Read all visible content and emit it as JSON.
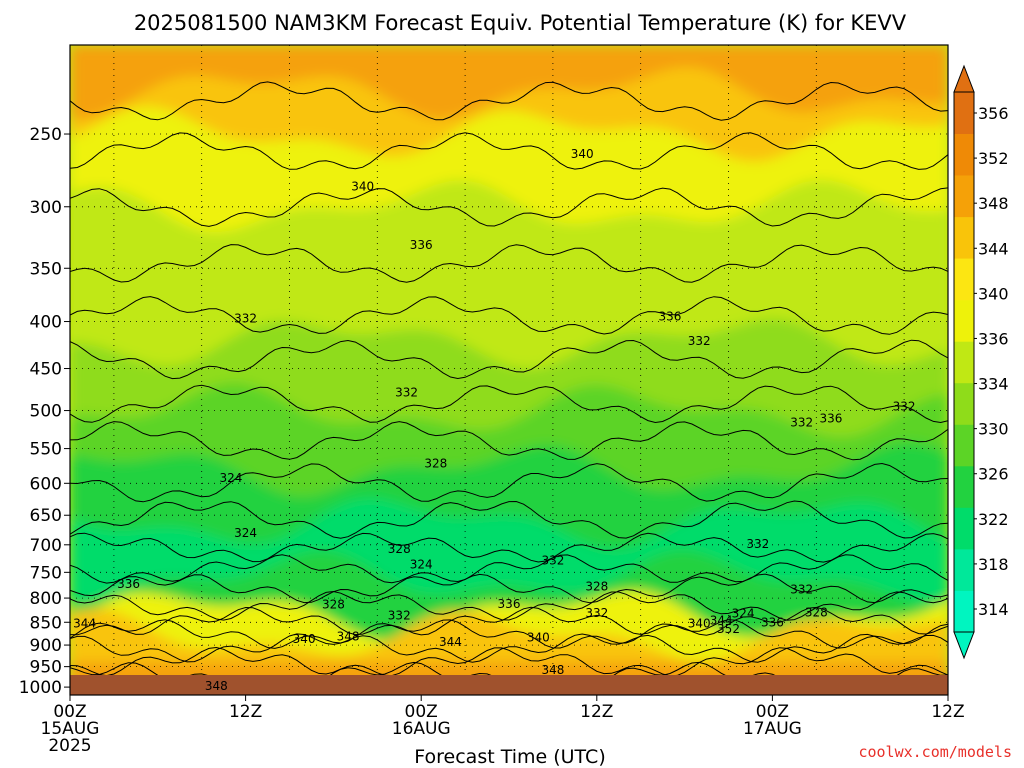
{
  "chart_data": {
    "type": "heatmap",
    "title": "2025081500 NAM3KM Forecast Equiv. Potential Temperature (K) for KEVV",
    "xlabel": "Forecast Time (UTC)",
    "ylabel": "",
    "credit": "coolwx.com/models",
    "x_ticks": [
      {
        "hour": 0,
        "lines": [
          "00Z",
          "15AUG",
          "2025"
        ]
      },
      {
        "hour": 12,
        "lines": [
          "12Z"
        ]
      },
      {
        "hour": 24,
        "lines": [
          "00Z",
          "16AUG"
        ]
      },
      {
        "hour": 36,
        "lines": [
          "12Z"
        ]
      },
      {
        "hour": 48,
        "lines": [
          "00Z",
          "17AUG"
        ]
      },
      {
        "hour": 60,
        "lines": [
          "12Z"
        ]
      }
    ],
    "xlim": [
      0,
      60
    ],
    "y_ticks": [
      250,
      300,
      350,
      400,
      450,
      500,
      550,
      600,
      650,
      700,
      750,
      800,
      850,
      900,
      950,
      1000
    ],
    "ylim": [
      1020,
      200
    ],
    "y_scale": "log-pressure",
    "colorbar": {
      "levels": [
        314,
        318,
        322,
        326,
        330,
        334,
        336,
        340,
        344,
        348,
        352,
        356
      ],
      "colors": [
        "#00f5c0",
        "#00e89a",
        "#00dc6a",
        "#22d240",
        "#5cd426",
        "#8fdc1a",
        "#c0e814",
        "#eef20a",
        "#fce612",
        "#f9c40a",
        "#f5a108",
        "#ef8a06",
        "#e07012"
      ]
    },
    "contour_labels": [
      {
        "v": "340",
        "h": 35,
        "p": 263
      },
      {
        "v": "340",
        "h": 20,
        "p": 285
      },
      {
        "v": "336",
        "h": 24,
        "p": 330
      },
      {
        "v": "336",
        "h": 41,
        "p": 395
      },
      {
        "v": "332",
        "h": 12,
        "p": 397
      },
      {
        "v": "332",
        "h": 43,
        "p": 420
      },
      {
        "v": "332",
        "h": 23,
        "p": 478
      },
      {
        "v": "332",
        "h": 50,
        "p": 515
      },
      {
        "v": "336",
        "h": 52,
        "p": 510
      },
      {
        "v": "332",
        "h": 57,
        "p": 495
      },
      {
        "v": "324",
        "h": 11,
        "p": 592
      },
      {
        "v": "328",
        "h": 25,
        "p": 571
      },
      {
        "v": "324",
        "h": 12,
        "p": 680
      },
      {
        "v": "328",
        "h": 22.5,
        "p": 707
      },
      {
        "v": "324",
        "h": 24,
        "p": 735
      },
      {
        "v": "332",
        "h": 33,
        "p": 728
      },
      {
        "v": "332",
        "h": 47,
        "p": 699
      },
      {
        "v": "336",
        "h": 4,
        "p": 772
      },
      {
        "v": "328",
        "h": 36,
        "p": 777
      },
      {
        "v": "332",
        "h": 50,
        "p": 783
      },
      {
        "v": "328",
        "h": 18,
        "p": 813
      },
      {
        "v": "336",
        "h": 30,
        "p": 812
      },
      {
        "v": "332",
        "h": 36,
        "p": 831
      },
      {
        "v": "324",
        "h": 46,
        "p": 832
      },
      {
        "v": "328",
        "h": 51,
        "p": 829
      },
      {
        "v": "332",
        "h": 22.5,
        "p": 836
      },
      {
        "v": "340",
        "h": 43,
        "p": 853
      },
      {
        "v": "344",
        "h": 44.5,
        "p": 846
      },
      {
        "v": "336",
        "h": 48,
        "p": 851
      },
      {
        "v": "352",
        "h": 45,
        "p": 864
      },
      {
        "v": "344",
        "h": 1,
        "p": 853
      },
      {
        "v": "340",
        "h": 16,
        "p": 886
      },
      {
        "v": "348",
        "h": 19,
        "p": 881
      },
      {
        "v": "344",
        "h": 26,
        "p": 893
      },
      {
        "v": "340",
        "h": 32,
        "p": 883
      },
      {
        "v": "348",
        "h": 33,
        "p": 958
      },
      {
        "v": "348",
        "h": 10,
        "p": 997
      }
    ]
  }
}
